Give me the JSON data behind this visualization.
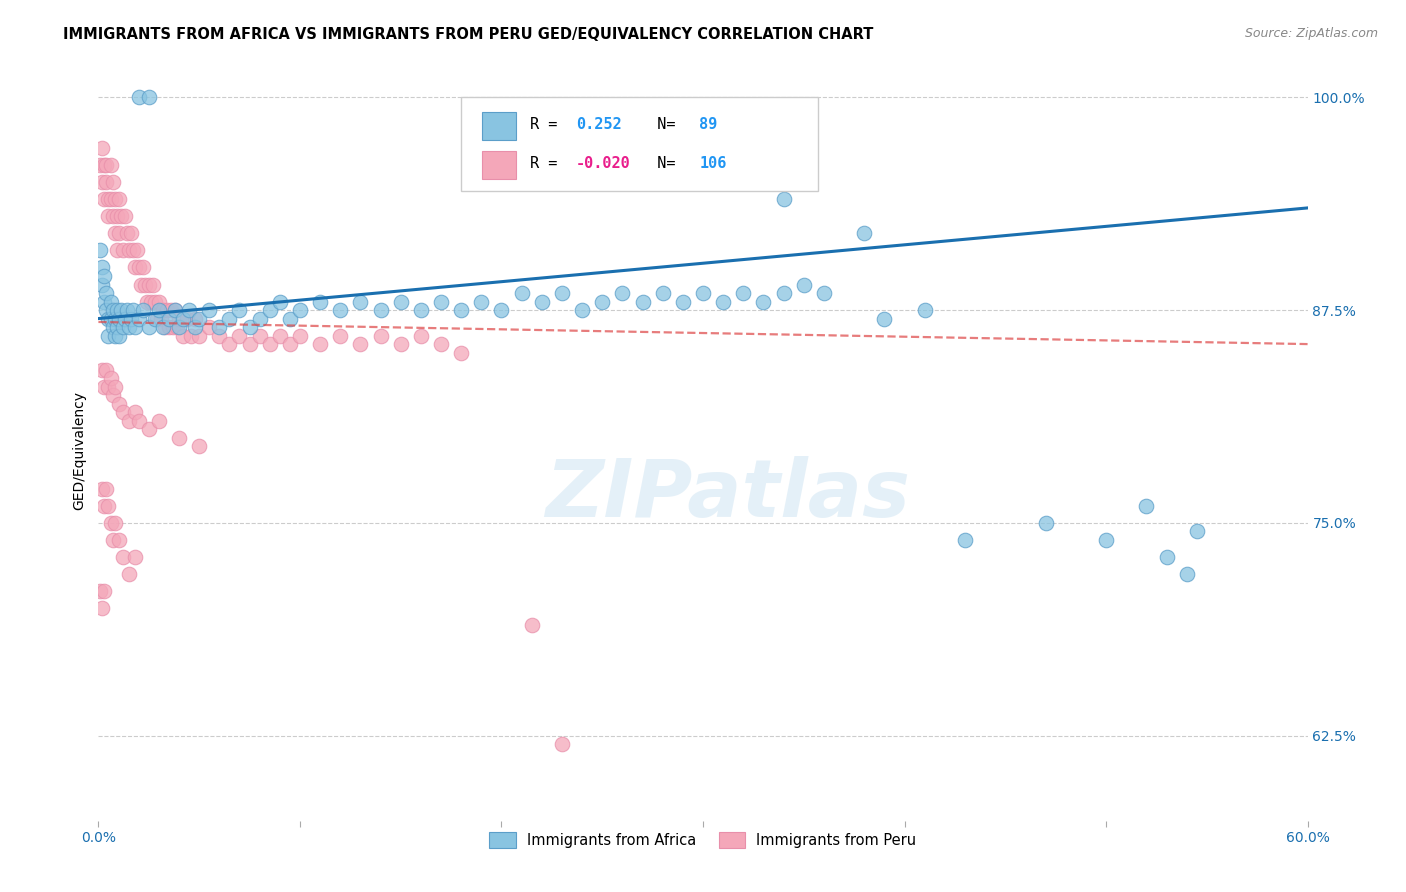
{
  "title": "IMMIGRANTS FROM AFRICA VS IMMIGRANTS FROM PERU GED/EQUIVALENCY CORRELATION CHART",
  "source": "Source: ZipAtlas.com",
  "ylabel": "GED/Equivalency",
  "legend_label_blue": "Immigrants from Africa",
  "legend_label_pink": "Immigrants from Peru",
  "R_blue": 0.252,
  "N_blue": 89,
  "R_pink": -0.02,
  "N_pink": 106,
  "xmin": 0.0,
  "xmax": 0.6,
  "ymin": 0.575,
  "ymax": 1.01,
  "yticks": [
    0.625,
    0.75,
    0.875,
    1.0
  ],
  "ytick_labels": [
    "62.5%",
    "75.0%",
    "87.5%",
    "100.0%"
  ],
  "xticks": [
    0.0,
    0.1,
    0.2,
    0.3,
    0.4,
    0.5,
    0.6
  ],
  "xtick_labels": [
    "0.0%",
    "",
    "",
    "",
    "",
    "",
    "60.0%"
  ],
  "watermark": "ZIPatlas",
  "blue_scatter": [
    [
      0.001,
      0.91
    ],
    [
      0.002,
      0.9
    ],
    [
      0.002,
      0.89
    ],
    [
      0.003,
      0.88
    ],
    [
      0.003,
      0.895
    ],
    [
      0.004,
      0.885
    ],
    [
      0.004,
      0.875
    ],
    [
      0.005,
      0.87
    ],
    [
      0.005,
      0.86
    ],
    [
      0.006,
      0.88
    ],
    [
      0.006,
      0.87
    ],
    [
      0.007,
      0.875
    ],
    [
      0.007,
      0.865
    ],
    [
      0.008,
      0.87
    ],
    [
      0.008,
      0.86
    ],
    [
      0.009,
      0.875
    ],
    [
      0.009,
      0.865
    ],
    [
      0.01,
      0.87
    ],
    [
      0.01,
      0.86
    ],
    [
      0.011,
      0.875
    ],
    [
      0.012,
      0.865
    ],
    [
      0.013,
      0.87
    ],
    [
      0.014,
      0.875
    ],
    [
      0.015,
      0.865
    ],
    [
      0.016,
      0.87
    ],
    [
      0.017,
      0.875
    ],
    [
      0.018,
      0.865
    ],
    [
      0.02,
      0.87
    ],
    [
      0.022,
      0.875
    ],
    [
      0.025,
      0.865
    ],
    [
      0.028,
      0.87
    ],
    [
      0.03,
      0.875
    ],
    [
      0.032,
      0.865
    ],
    [
      0.035,
      0.87
    ],
    [
      0.038,
      0.875
    ],
    [
      0.04,
      0.865
    ],
    [
      0.042,
      0.87
    ],
    [
      0.045,
      0.875
    ],
    [
      0.048,
      0.865
    ],
    [
      0.05,
      0.87
    ],
    [
      0.055,
      0.875
    ],
    [
      0.06,
      0.865
    ],
    [
      0.065,
      0.87
    ],
    [
      0.07,
      0.875
    ],
    [
      0.075,
      0.865
    ],
    [
      0.08,
      0.87
    ],
    [
      0.085,
      0.875
    ],
    [
      0.09,
      0.88
    ],
    [
      0.095,
      0.87
    ],
    [
      0.1,
      0.875
    ],
    [
      0.11,
      0.88
    ],
    [
      0.12,
      0.875
    ],
    [
      0.13,
      0.88
    ],
    [
      0.14,
      0.875
    ],
    [
      0.15,
      0.88
    ],
    [
      0.16,
      0.875
    ],
    [
      0.17,
      0.88
    ],
    [
      0.18,
      0.875
    ],
    [
      0.19,
      0.88
    ],
    [
      0.2,
      0.875
    ],
    [
      0.21,
      0.885
    ],
    [
      0.22,
      0.88
    ],
    [
      0.23,
      0.885
    ],
    [
      0.24,
      0.875
    ],
    [
      0.25,
      0.88
    ],
    [
      0.26,
      0.885
    ],
    [
      0.27,
      0.88
    ],
    [
      0.28,
      0.885
    ],
    [
      0.29,
      0.88
    ],
    [
      0.3,
      0.885
    ],
    [
      0.31,
      0.88
    ],
    [
      0.32,
      0.885
    ],
    [
      0.33,
      0.88
    ],
    [
      0.34,
      0.885
    ],
    [
      0.35,
      0.89
    ],
    [
      0.36,
      0.885
    ],
    [
      0.02,
      1.0
    ],
    [
      0.025,
      1.0
    ],
    [
      0.3,
      0.96
    ],
    [
      0.34,
      0.94
    ],
    [
      0.38,
      0.92
    ],
    [
      0.39,
      0.87
    ],
    [
      0.41,
      0.875
    ],
    [
      0.43,
      0.74
    ],
    [
      0.47,
      0.75
    ],
    [
      0.5,
      0.74
    ],
    [
      0.52,
      0.76
    ],
    [
      0.53,
      0.73
    ],
    [
      0.54,
      0.72
    ],
    [
      0.545,
      0.745
    ]
  ],
  "pink_scatter": [
    [
      0.001,
      0.96
    ],
    [
      0.002,
      0.97
    ],
    [
      0.002,
      0.95
    ],
    [
      0.003,
      0.96
    ],
    [
      0.003,
      0.94
    ],
    [
      0.004,
      0.96
    ],
    [
      0.004,
      0.95
    ],
    [
      0.005,
      0.94
    ],
    [
      0.005,
      0.93
    ],
    [
      0.006,
      0.96
    ],
    [
      0.006,
      0.94
    ],
    [
      0.007,
      0.95
    ],
    [
      0.007,
      0.93
    ],
    [
      0.008,
      0.94
    ],
    [
      0.008,
      0.92
    ],
    [
      0.009,
      0.93
    ],
    [
      0.009,
      0.91
    ],
    [
      0.01,
      0.94
    ],
    [
      0.01,
      0.92
    ],
    [
      0.011,
      0.93
    ],
    [
      0.012,
      0.91
    ],
    [
      0.013,
      0.93
    ],
    [
      0.014,
      0.92
    ],
    [
      0.015,
      0.91
    ],
    [
      0.016,
      0.92
    ],
    [
      0.017,
      0.91
    ],
    [
      0.018,
      0.9
    ],
    [
      0.019,
      0.91
    ],
    [
      0.02,
      0.9
    ],
    [
      0.021,
      0.89
    ],
    [
      0.022,
      0.9
    ],
    [
      0.023,
      0.89
    ],
    [
      0.024,
      0.88
    ],
    [
      0.025,
      0.89
    ],
    [
      0.026,
      0.88
    ],
    [
      0.027,
      0.89
    ],
    [
      0.028,
      0.88
    ],
    [
      0.029,
      0.87
    ],
    [
      0.03,
      0.88
    ],
    [
      0.031,
      0.87
    ],
    [
      0.032,
      0.875
    ],
    [
      0.033,
      0.865
    ],
    [
      0.034,
      0.875
    ],
    [
      0.035,
      0.865
    ],
    [
      0.036,
      0.875
    ],
    [
      0.037,
      0.865
    ],
    [
      0.038,
      0.875
    ],
    [
      0.039,
      0.865
    ],
    [
      0.04,
      0.87
    ],
    [
      0.042,
      0.86
    ],
    [
      0.044,
      0.87
    ],
    [
      0.046,
      0.86
    ],
    [
      0.048,
      0.87
    ],
    [
      0.05,
      0.86
    ],
    [
      0.055,
      0.865
    ],
    [
      0.06,
      0.86
    ],
    [
      0.065,
      0.855
    ],
    [
      0.07,
      0.86
    ],
    [
      0.075,
      0.855
    ],
    [
      0.08,
      0.86
    ],
    [
      0.085,
      0.855
    ],
    [
      0.09,
      0.86
    ],
    [
      0.095,
      0.855
    ],
    [
      0.1,
      0.86
    ],
    [
      0.11,
      0.855
    ],
    [
      0.12,
      0.86
    ],
    [
      0.13,
      0.855
    ],
    [
      0.14,
      0.86
    ],
    [
      0.15,
      0.855
    ],
    [
      0.16,
      0.86
    ],
    [
      0.17,
      0.855
    ],
    [
      0.18,
      0.85
    ],
    [
      0.002,
      0.84
    ],
    [
      0.003,
      0.83
    ],
    [
      0.004,
      0.84
    ],
    [
      0.005,
      0.83
    ],
    [
      0.006,
      0.835
    ],
    [
      0.007,
      0.825
    ],
    [
      0.008,
      0.83
    ],
    [
      0.01,
      0.82
    ],
    [
      0.012,
      0.815
    ],
    [
      0.015,
      0.81
    ],
    [
      0.018,
      0.815
    ],
    [
      0.02,
      0.81
    ],
    [
      0.025,
      0.805
    ],
    [
      0.03,
      0.81
    ],
    [
      0.04,
      0.8
    ],
    [
      0.05,
      0.795
    ],
    [
      0.002,
      0.77
    ],
    [
      0.003,
      0.76
    ],
    [
      0.004,
      0.77
    ],
    [
      0.005,
      0.76
    ],
    [
      0.006,
      0.75
    ],
    [
      0.007,
      0.74
    ],
    [
      0.008,
      0.75
    ],
    [
      0.01,
      0.74
    ],
    [
      0.012,
      0.73
    ],
    [
      0.015,
      0.72
    ],
    [
      0.018,
      0.73
    ],
    [
      0.001,
      0.71
    ],
    [
      0.002,
      0.7
    ],
    [
      0.003,
      0.71
    ],
    [
      0.215,
      0.69
    ],
    [
      0.23,
      0.62
    ]
  ],
  "blue_line_x": [
    0.0,
    0.6
  ],
  "blue_line_y": [
    0.87,
    0.935
  ],
  "pink_line_x": [
    0.0,
    0.6
  ],
  "pink_line_y": [
    0.868,
    0.855
  ],
  "blue_color": "#89c4e1",
  "pink_color": "#f4a7b9",
  "blue_edge": "#5b9ec9",
  "pink_edge": "#e88faa",
  "blue_line_color": "#1a6faf",
  "pink_line_color": "#d44",
  "legend_box_color": "#e8f4f8",
  "R_blue_color": "#2196F3",
  "N_blue_color": "#2196F3",
  "R_pink_color": "#e91e8c",
  "N_pink_color": "#2196F3"
}
